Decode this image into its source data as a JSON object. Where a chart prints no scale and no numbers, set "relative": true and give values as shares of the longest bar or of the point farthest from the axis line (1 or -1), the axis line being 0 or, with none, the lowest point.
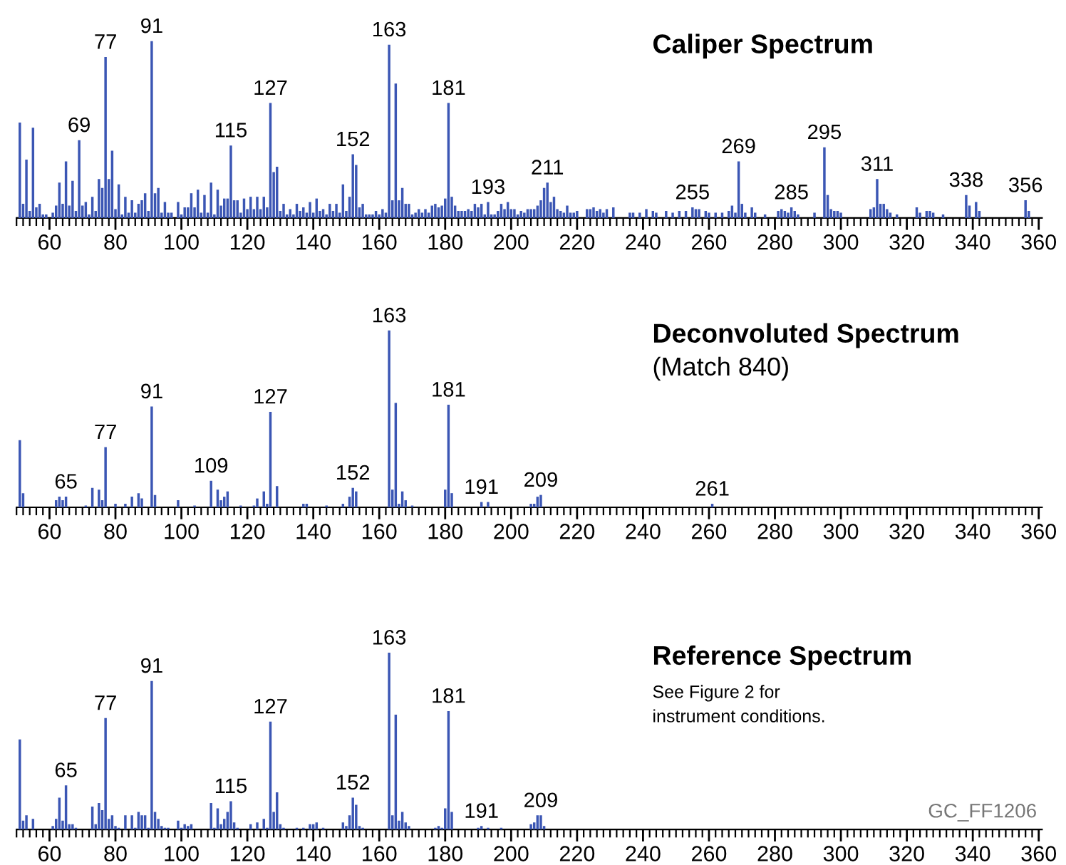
{
  "chart_data": [
    {
      "type": "bar",
      "relative": true,
      "title": "Caliper Spectrum",
      "color": "#3b56b4",
      "grid": false,
      "xlim": [
        50,
        361
      ],
      "xticks": [
        60,
        80,
        100,
        120,
        140,
        160,
        180,
        200,
        220,
        240,
        260,
        280,
        300,
        320,
        340,
        360
      ],
      "x": [
        51,
        52,
        53,
        54,
        55,
        56,
        57,
        58,
        59,
        61,
        62,
        63,
        64,
        65,
        66,
        67,
        68,
        69,
        70,
        71,
        72,
        73,
        74,
        75,
        76,
        77,
        78,
        79,
        80,
        81,
        82,
        83,
        84,
        85,
        86,
        87,
        88,
        89,
        90,
        91,
        92,
        93,
        94,
        95,
        96,
        97,
        99,
        100,
        101,
        102,
        103,
        104,
        105,
        106,
        107,
        108,
        109,
        110,
        111,
        112,
        113,
        114,
        115,
        116,
        117,
        118,
        119,
        120,
        121,
        122,
        123,
        124,
        125,
        126,
        127,
        128,
        129,
        130,
        131,
        132,
        133,
        134,
        135,
        136,
        137,
        138,
        139,
        140,
        141,
        142,
        143,
        144,
        145,
        146,
        147,
        148,
        149,
        150,
        151,
        152,
        153,
        154,
        155,
        156,
        157,
        158,
        159,
        160,
        161,
        162,
        163,
        164,
        165,
        166,
        167,
        168,
        169,
        170,
        171,
        172,
        173,
        174,
        175,
        176,
        177,
        178,
        179,
        180,
        181,
        182,
        183,
        184,
        185,
        186,
        187,
        188,
        189,
        190,
        191,
        192,
        193,
        194,
        195,
        196,
        197,
        198,
        199,
        200,
        201,
        202,
        203,
        204,
        205,
        206,
        207,
        208,
        209,
        210,
        211,
        212,
        213,
        214,
        215,
        216,
        217,
        218,
        219,
        220,
        223,
        224,
        225,
        226,
        227,
        228,
        229,
        231,
        236,
        237,
        239,
        241,
        243,
        244,
        247,
        249,
        251,
        253,
        255,
        256,
        257,
        259,
        260,
        262,
        264,
        266,
        267,
        268,
        269,
        270,
        271,
        273,
        274,
        277,
        281,
        282,
        283,
        284,
        285,
        286,
        287,
        292,
        295,
        296,
        297,
        298,
        299,
        300,
        309,
        310,
        311,
        312,
        313,
        314,
        315,
        317,
        323,
        324,
        326,
        327,
        328,
        331,
        338,
        339,
        341,
        342,
        356,
        357
      ],
      "values": [
        0.54,
        0.08,
        0.33,
        0.04,
        0.51,
        0.06,
        0.08,
        0.02,
        0.02,
        0.03,
        0.07,
        0.2,
        0.08,
        0.32,
        0.07,
        0.21,
        0.04,
        0.44,
        0.07,
        0.09,
        0.02,
        0.12,
        0.04,
        0.22,
        0.17,
        0.91,
        0.22,
        0.38,
        0.05,
        0.19,
        0.02,
        0.12,
        0.03,
        0.1,
        0.03,
        0.08,
        0.1,
        0.14,
        0.04,
        1,
        0.14,
        0.17,
        0.03,
        0.09,
        0.03,
        0.03,
        0.09,
        0.02,
        0.06,
        0.06,
        0.14,
        0.06,
        0.16,
        0.03,
        0.13,
        0.03,
        0.2,
        0.02,
        0.16,
        0.07,
        0.11,
        0.11,
        0.41,
        0.1,
        0.1,
        0.03,
        0.11,
        0.05,
        0.12,
        0.05,
        0.12,
        0.05,
        0.12,
        0.06,
        0.65,
        0.26,
        0.29,
        0.04,
        0.08,
        0.02,
        0.05,
        0.02,
        0.08,
        0.04,
        0.06,
        0.03,
        0.09,
        0.03,
        0.11,
        0.04,
        0.05,
        0.02,
        0.08,
        0.04,
        0.08,
        0.03,
        0.19,
        0.04,
        0.12,
        0.36,
        0.3,
        0.06,
        0.08,
        0.02,
        0.02,
        0.02,
        0.04,
        0.02,
        0.05,
        0.03,
        0.98,
        0.1,
        0.76,
        0.1,
        0.17,
        0.08,
        0.08,
        0.02,
        0.03,
        0.05,
        0.03,
        0.05,
        0.03,
        0.07,
        0.08,
        0.06,
        0.07,
        0.11,
        0.65,
        0.12,
        0.07,
        0.04,
        0.04,
        0.04,
        0.05,
        0.04,
        0.08,
        0.06,
        0.08,
        0.02,
        0.09,
        0.02,
        0.02,
        0.04,
        0.08,
        0.05,
        0.09,
        0.05,
        0.05,
        0.02,
        0.04,
        0.03,
        0.05,
        0.05,
        0.05,
        0.07,
        0.1,
        0.17,
        0.2,
        0.09,
        0.12,
        0.05,
        0.04,
        0.03,
        0.07,
        0.03,
        0.03,
        0.04,
        0.05,
        0.05,
        0.06,
        0.04,
        0.05,
        0.03,
        0.05,
        0.06,
        0.03,
        0.03,
        0.03,
        0.05,
        0.04,
        0.03,
        0.04,
        0.03,
        0.04,
        0.04,
        0.06,
        0.05,
        0.05,
        0.04,
        0.03,
        0.03,
        0.03,
        0.04,
        0.07,
        0.03,
        0.32,
        0.08,
        0.03,
        0.06,
        0.03,
        0.02,
        0.04,
        0.05,
        0.04,
        0.03,
        0.06,
        0.04,
        0.02,
        0.03,
        0.4,
        0.13,
        0.05,
        0.04,
        0.04,
        0.03,
        0.05,
        0.06,
        0.22,
        0.08,
        0.08,
        0.05,
        0.03,
        0.02,
        0.06,
        0.03,
        0.04,
        0.04,
        0.03,
        0.02,
        0.13,
        0.07,
        0.09,
        0.04,
        0.1,
        0.04
      ],
      "annotations": [
        {
          "text": "69",
          "x": 69,
          "y": 0.44
        },
        {
          "text": "77",
          "x": 77,
          "y": 0.91
        },
        {
          "text": "91",
          "x": 91,
          "y": 1
        },
        {
          "text": "115",
          "x": 115,
          "y": 0.41
        },
        {
          "text": "127",
          "x": 127,
          "y": 0.65
        },
        {
          "text": "152",
          "x": 152,
          "y": 0.36
        },
        {
          "text": "163",
          "x": 163,
          "y": 0.98
        },
        {
          "text": "181",
          "x": 181,
          "y": 0.65
        },
        {
          "text": "193",
          "x": 193,
          "y": 0.09
        },
        {
          "text": "211",
          "x": 211,
          "y": 0.2
        },
        {
          "text": "255",
          "x": 255,
          "y": 0.06
        },
        {
          "text": "269",
          "x": 269,
          "y": 0.32
        },
        {
          "text": "285",
          "x": 285,
          "y": 0.06
        },
        {
          "text": "295",
          "x": 295,
          "y": 0.4
        },
        {
          "text": "311",
          "x": 311,
          "y": 0.22
        },
        {
          "text": "338",
          "x": 338,
          "y": 0.13
        },
        {
          "text": "356",
          "x": 356,
          "y": 0.1
        }
      ]
    },
    {
      "type": "bar",
      "relative": true,
      "title": "Deconvoluted Spectrum",
      "subtitle": "(Match 840)",
      "color": "#3b56b4",
      "grid": false,
      "xlim": [
        50,
        361
      ],
      "xticks": [
        60,
        80,
        100,
        120,
        140,
        160,
        180,
        200,
        220,
        240,
        260,
        280,
        300,
        320,
        340,
        360
      ],
      "x": [
        51,
        52,
        62,
        63,
        64,
        65,
        71,
        73,
        75,
        76,
        77,
        80,
        83,
        85,
        87,
        88,
        91,
        92,
        99,
        104,
        109,
        111,
        112,
        113,
        114,
        118,
        122,
        123,
        125,
        126,
        127,
        129,
        137,
        138,
        144,
        149,
        151,
        152,
        153,
        163,
        164,
        165,
        166,
        167,
        168,
        170,
        180,
        181,
        182,
        191,
        193,
        206,
        207,
        208,
        209,
        261
      ],
      "values": [
        0.38,
        0.08,
        0.04,
        0.06,
        0.04,
        0.06,
        0.01,
        0.11,
        0.1,
        0.04,
        0.34,
        0.02,
        0.02,
        0.06,
        0.08,
        0.05,
        0.57,
        0.07,
        0.04,
        0.01,
        0.15,
        0.1,
        0.04,
        0.06,
        0.09,
        0.01,
        0.01,
        0.05,
        0.09,
        0.02,
        0.54,
        0.12,
        0.02,
        0.02,
        0.01,
        0.02,
        0.06,
        0.11,
        0.09,
        1,
        0.1,
        0.59,
        0.02,
        0.09,
        0.04,
        0.01,
        0.1,
        0.58,
        0.08,
        0.03,
        0.03,
        0.02,
        0.02,
        0.06,
        0.07,
        0.02
      ],
      "annotations": [
        {
          "text": "65",
          "x": 65,
          "y": 0.06
        },
        {
          "text": "77",
          "x": 77,
          "y": 0.34
        },
        {
          "text": "91",
          "x": 91,
          "y": 0.57
        },
        {
          "text": "109",
          "x": 109,
          "y": 0.15
        },
        {
          "text": "127",
          "x": 127,
          "y": 0.54
        },
        {
          "text": "152",
          "x": 152,
          "y": 0.11
        },
        {
          "text": "163",
          "x": 163,
          "y": 1
        },
        {
          "text": "181",
          "x": 181,
          "y": 0.58
        },
        {
          "text": "191",
          "x": 191,
          "y": 0.03
        },
        {
          "text": "209",
          "x": 209,
          "y": 0.07
        },
        {
          "text": "261",
          "x": 261,
          "y": 0.02
        }
      ]
    },
    {
      "type": "bar",
      "relative": true,
      "title": "Reference Spectrum",
      "color": "#3b56b4",
      "grid": false,
      "xlim": [
        50,
        361
      ],
      "xticks": [
        60,
        80,
        100,
        120,
        140,
        160,
        180,
        200,
        220,
        240,
        260,
        280,
        300,
        320,
        340,
        360
      ],
      "x": [
        51,
        52,
        53,
        55,
        61,
        62,
        63,
        64,
        65,
        66,
        67,
        68,
        73,
        74,
        75,
        76,
        77,
        78,
        79,
        80,
        81,
        83,
        85,
        86,
        87,
        88,
        89,
        90,
        91,
        92,
        93,
        94,
        95,
        96,
        99,
        100,
        101,
        102,
        103,
        109,
        110,
        111,
        112,
        113,
        114,
        115,
        116,
        117,
        121,
        123,
        125,
        126,
        127,
        128,
        129,
        130,
        131,
        135,
        137,
        139,
        140,
        141,
        143,
        149,
        150,
        151,
        152,
        153,
        154,
        155,
        163,
        164,
        165,
        166,
        167,
        168,
        169,
        177,
        178,
        179,
        180,
        181,
        182,
        190,
        191,
        193,
        197,
        206,
        207,
        208,
        209,
        210
      ],
      "values": [
        0.51,
        0.05,
        0.08,
        0.06,
        0.02,
        0.06,
        0.18,
        0.05,
        0.25,
        0.03,
        0.03,
        0.01,
        0.13,
        0.03,
        0.15,
        0.11,
        0.63,
        0.06,
        0.08,
        0.02,
        0.01,
        0.08,
        0.08,
        0.01,
        0.1,
        0.08,
        0.08,
        0.01,
        0.84,
        0.1,
        0.06,
        0.02,
        0.01,
        0.01,
        0.05,
        0.01,
        0.03,
        0.02,
        0.03,
        0.15,
        0.01,
        0.12,
        0.03,
        0.06,
        0.1,
        0.16,
        0.04,
        0.01,
        0.03,
        0.04,
        0.06,
        0.01,
        0.61,
        0.1,
        0.21,
        0.03,
        0.01,
        0.01,
        0.01,
        0.03,
        0.03,
        0.04,
        0.01,
        0.04,
        0.02,
        0.08,
        0.18,
        0.14,
        0.02,
        0.01,
        1,
        0.08,
        0.65,
        0.05,
        0.1,
        0.04,
        0.02,
        0.01,
        0.02,
        0.01,
        0.12,
        0.67,
        0.1,
        0.01,
        0.02,
        0.01,
        0.01,
        0.03,
        0.04,
        0.08,
        0.08,
        0.02
      ],
      "annotations": [
        {
          "text": "65",
          "x": 65,
          "y": 0.25
        },
        {
          "text": "77",
          "x": 77,
          "y": 0.63
        },
        {
          "text": "91",
          "x": 91,
          "y": 0.84
        },
        {
          "text": "115",
          "x": 115,
          "y": 0.16
        },
        {
          "text": "127",
          "x": 127,
          "y": 0.61
        },
        {
          "text": "152",
          "x": 152,
          "y": 0.18
        },
        {
          "text": "163",
          "x": 163,
          "y": 1
        },
        {
          "text": "181",
          "x": 181,
          "y": 0.67
        },
        {
          "text": "191",
          "x": 191,
          "y": 0.02
        },
        {
          "text": "209",
          "x": 209,
          "y": 0.08
        },
        "See Figure 2 for\ninstrument conditions.",
        "GC_FF1206"
      ]
    }
  ]
}
